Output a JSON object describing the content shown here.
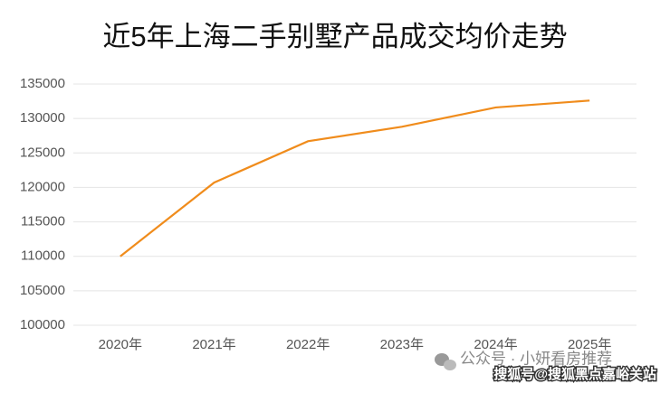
{
  "chart_data": {
    "type": "line",
    "title": "近5年上海二手别墅产品成交均价走势",
    "categories": [
      "2020年",
      "2021年",
      "2022年",
      "2023年",
      "2024年",
      "2025年"
    ],
    "series": [
      {
        "name": "成交均价",
        "color": "#f08c1c",
        "values": [
          110000,
          120700,
          126700,
          128800,
          131600,
          132600
        ]
      }
    ],
    "ylim": [
      100000,
      135000
    ],
    "yticks": [
      100000,
      105000,
      110000,
      115000,
      120000,
      125000,
      130000,
      135000
    ],
    "grid": true,
    "annotations": [
      "公众号 · 小妍看房推荐",
      "搜狐号@搜狐黑点嘉峪关站"
    ]
  }
}
